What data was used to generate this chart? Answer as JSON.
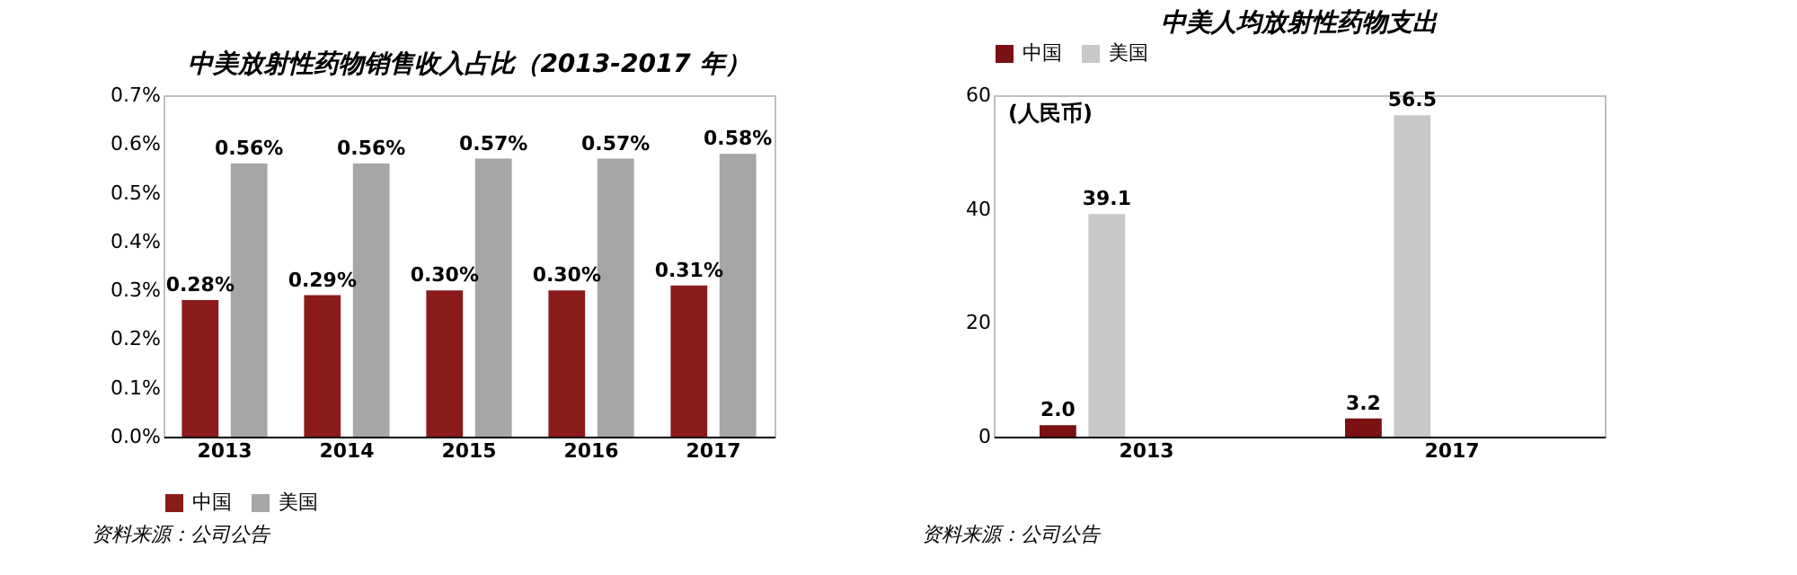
{
  "chart_data": [
    {
      "type": "bar",
      "title": "中美放射性药物销售收入占比（2013-2017 年）",
      "categories": [
        "2013",
        "2014",
        "2015",
        "2016",
        "2017"
      ],
      "series": [
        {
          "name": "中国",
          "color": "#8b1a1a",
          "values": [
            0.28,
            0.29,
            0.3,
            0.3,
            0.31
          ],
          "value_labels": [
            "0.28%",
            "0.29%",
            "0.30%",
            "0.30%",
            "0.31%"
          ]
        },
        {
          "name": "美国",
          "color": "#a6a6a6",
          "values": [
            0.56,
            0.56,
            0.57,
            0.57,
            0.58
          ],
          "value_labels": [
            "0.56%",
            "0.56%",
            "0.57%",
            "0.57%",
            "0.58%"
          ]
        }
      ],
      "ylim": [
        0,
        0.7
      ],
      "yticks": [
        {
          "value": 0,
          "label": "0.0%"
        },
        {
          "value": 0.1,
          "label": "0.1%"
        },
        {
          "value": 0.2,
          "label": "0.2%"
        },
        {
          "value": 0.3,
          "label": "0.3%"
        },
        {
          "value": 0.4,
          "label": "0.4%"
        },
        {
          "value": 0.5,
          "label": "0.5%"
        },
        {
          "value": 0.6,
          "label": "0.6%"
        },
        {
          "value": 0.7,
          "label": "0.7%"
        }
      ],
      "grid": false,
      "legend": "bottom",
      "annotations": [
        "资料来源：公司公告"
      ]
    },
    {
      "type": "bar",
      "title": "中美人均放射性药物支出",
      "categories": [
        "2013",
        "2017"
      ],
      "series": [
        {
          "name": "中国",
          "color": "#7b1113",
          "values": [
            2.0,
            3.2
          ],
          "value_labels": [
            "2.0",
            "3.2"
          ]
        },
        {
          "name": "美国",
          "color": "#c8c8c8",
          "values": [
            39.1,
            56.5
          ],
          "value_labels": [
            "39.1",
            "56.5"
          ]
        }
      ],
      "ylim": [
        0,
        60
      ],
      "yticks": [
        0,
        20,
        40,
        60
      ],
      "grid": false,
      "legend": "top",
      "annotations": [
        "(人民币)",
        "资料来源：公司公告"
      ]
    }
  ]
}
